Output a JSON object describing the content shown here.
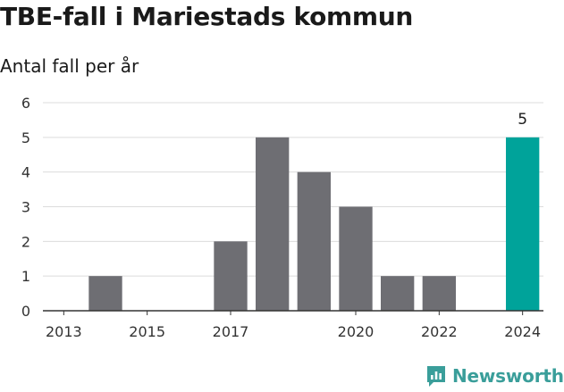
{
  "header": {
    "title": "TBE-fall i Mariestads kommun",
    "subtitle": "Antal fall per år"
  },
  "brand": {
    "name": "Newsworthy",
    "logo_icon": "newsworthy-logo-icon"
  },
  "colors": {
    "bar_default": "#6e6e73",
    "bar_highlight": "#00a39a",
    "grid": "#dcdcdc",
    "axis": "#333333",
    "brand": "#3a9e9a"
  },
  "chart_data": {
    "type": "bar",
    "title": "TBE-fall i Mariestads kommun",
    "subtitle": "Antal fall per år",
    "xlabel": "",
    "ylabel": "",
    "categories": [
      "2013",
      "2014",
      "2015",
      "2016",
      "2017",
      "2018",
      "2019",
      "2020",
      "2021",
      "2022",
      "2023",
      "2024"
    ],
    "values": [
      0,
      1,
      0,
      0,
      2,
      5,
      4,
      3,
      1,
      1,
      0,
      5
    ],
    "x_tick_labels": [
      "2013",
      "2015",
      "2017",
      "2020",
      "2022",
      "2024"
    ],
    "y_ticks": [
      0,
      1,
      2,
      3,
      4,
      5,
      6
    ],
    "ylim": [
      0,
      6
    ],
    "grid": true,
    "highlight_category": "2024",
    "data_labels": [
      {
        "category": "2024",
        "text": "5"
      }
    ]
  }
}
